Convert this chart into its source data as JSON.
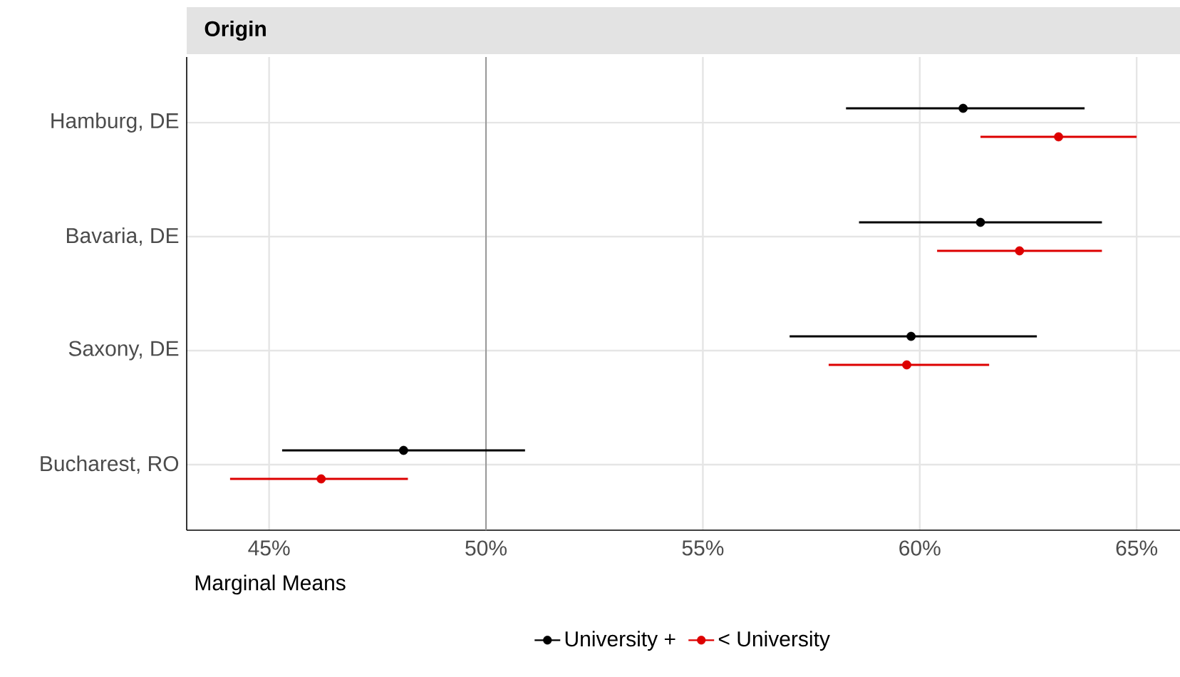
{
  "chart_data": {
    "type": "scatter",
    "orientation": "horizontal",
    "title": "Origin",
    "xlabel": "Marginal Means",
    "categories": [
      "Hamburg, DE",
      "Bavaria, DE",
      "Saxony, DE",
      "Bucharest, RO"
    ],
    "series": [
      {
        "name": "University +",
        "color": "#000000",
        "values": [
          61.0,
          61.4,
          59.8,
          48.1
        ],
        "errors": [
          [
            58.3,
            63.8
          ],
          [
            58.6,
            64.2
          ],
          [
            57.0,
            62.7
          ],
          [
            45.3,
            50.9
          ]
        ]
      },
      {
        "name": "< University",
        "color": "#dd0000",
        "values": [
          63.2,
          62.3,
          59.7,
          46.2
        ],
        "errors": [
          [
            61.4,
            65.0
          ],
          [
            60.4,
            64.2
          ],
          [
            57.9,
            61.6
          ],
          [
            44.1,
            48.2
          ]
        ]
      }
    ],
    "xlim": [
      43.1,
      66.0
    ],
    "xticks": [
      {
        "value": 45,
        "label": "45%"
      },
      {
        "value": 50,
        "label": "50%"
      },
      {
        "value": 55,
        "label": "55%"
      },
      {
        "value": 60,
        "label": "60%"
      },
      {
        "value": 65,
        "label": "65%"
      }
    ],
    "ref_lines": [
      {
        "axis": "x",
        "value": 50,
        "color": "#999999"
      }
    ],
    "grid": true,
    "legend": "bottom"
  }
}
